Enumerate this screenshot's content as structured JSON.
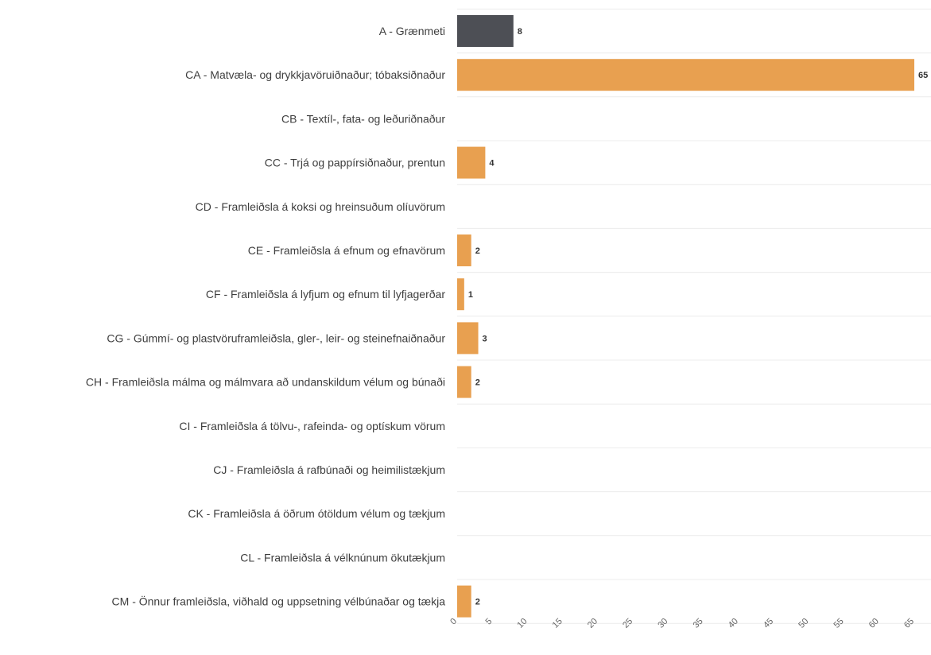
{
  "chart_data": {
    "type": "bar",
    "orientation": "horizontal",
    "categories": [
      "A - Grænmeti",
      "CA - Matvæla- og drykkjavöruiðnaður; tóbaksiðnaður",
      "CB - Textíl-, fata- og leðuriðnaður",
      "CC - Trjá og pappírsiðnaður, prentun",
      "CD - Framleiðsla á koksi og hreinsuðum olíuvörum",
      "CE - Framleiðsla á efnum og efnavörum",
      "CF - Framleiðsla á lyfjum og efnum til lyfjagerðar",
      "CG - Gúmmí- og plastvöruframleiðsla, gler-, leir- og steinefnaiðnaður",
      "CH - Framleiðsla málma og málmvara að undanskildum vélum og búnaði",
      "CI - Framleiðsla á tölvu-, rafeinda- og optískum vörum",
      "CJ - Framleiðsla á rafbúnaði og heimilistækjum",
      "CK - Framleiðsla á öðrum ótöldum vélum og tækjum",
      "CL - Framleiðsla á vélknúnum ökutækjum",
      "CM - Önnur framleiðsla, viðhald og uppsetning vélbúnaðar og tækja"
    ],
    "values": [
      8,
      65,
      null,
      4,
      null,
      2,
      1,
      3,
      2,
      null,
      null,
      null,
      null,
      2
    ],
    "value_labels": [
      "8",
      "65",
      "",
      "4",
      "",
      "2",
      "1",
      "3",
      "2",
      "",
      "",
      "",
      "",
      "2"
    ],
    "bar_colors": [
      "#4d4f55",
      "#e8a050",
      "#e8a050",
      "#e8a050",
      "#e8a050",
      "#e8a050",
      "#e8a050",
      "#e8a050",
      "#e8a050",
      "#e8a050",
      "#e8a050",
      "#e8a050",
      "#e8a050",
      "#e8a050"
    ],
    "xlim": [
      0,
      65
    ],
    "x_ticks": [
      0,
      5,
      10,
      15,
      20,
      25,
      30,
      35,
      40,
      45,
      50,
      55,
      60,
      65
    ],
    "x_tick_labels": [
      "0",
      "5",
      "10",
      "15",
      "20",
      "25",
      "30",
      "35",
      "40",
      "45",
      "50",
      "55",
      "60",
      "65"
    ],
    "title": "",
    "xlabel": "",
    "ylabel": "",
    "grid": true,
    "legend": "none"
  }
}
